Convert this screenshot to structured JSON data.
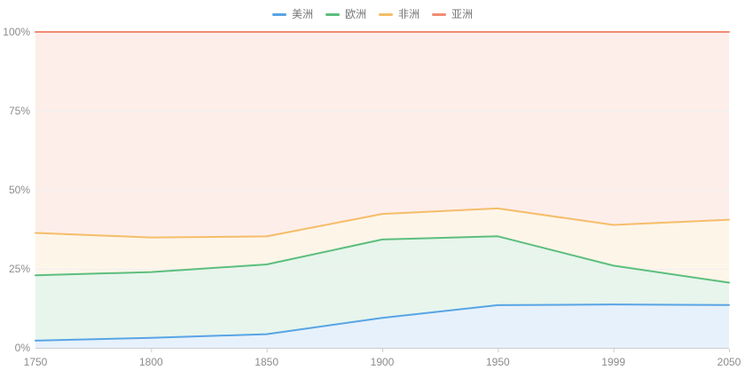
{
  "chart_data": {
    "type": "area",
    "variant": "percent-stacked",
    "title": "",
    "unit": "%",
    "categories": [
      "1750",
      "1800",
      "1850",
      "1900",
      "1950",
      "1999",
      "2050"
    ],
    "series": [
      {
        "name": "美洲",
        "color": "#58A4E5",
        "values": [
          2.28,
          3.18,
          4.32,
          9.49,
          13.51,
          13.75,
          13.55
        ]
      },
      {
        "name": "欧洲",
        "color": "#5CBE7D",
        "values": [
          20.66,
          20.8,
          22.08,
          24.82,
          21.8,
          12.26,
          7.09
        ]
      },
      {
        "name": "非洲",
        "color": "#F5BD69",
        "values": [
          13.43,
          10.96,
          8.88,
          8.09,
          8.81,
          12.9,
          19.93
        ]
      },
      {
        "name": "亚洲",
        "color": "#F18C74",
        "values": [
          63.62,
          65.06,
          64.72,
          57.6,
          55.88,
          61.09,
          59.44
        ]
      }
    ],
    "y_axis": {
      "tick_labels": [
        "0%",
        "25%",
        "50%",
        "75%",
        "100%"
      ],
      "tick_values": [
        0,
        25,
        50,
        75,
        100
      ],
      "range": [
        0,
        100
      ]
    },
    "grid": "horizontal",
    "legend_position": "top-center"
  },
  "style": {
    "background": "#FFFFFF",
    "axis_line_color": "#CCCCCC",
    "grid_line_color": "#F0F0F0",
    "axis_label_color": "#8C8C8C",
    "legend_text_color": "#757575",
    "area_fill_opacity": 0.15,
    "line_width": 2
  }
}
